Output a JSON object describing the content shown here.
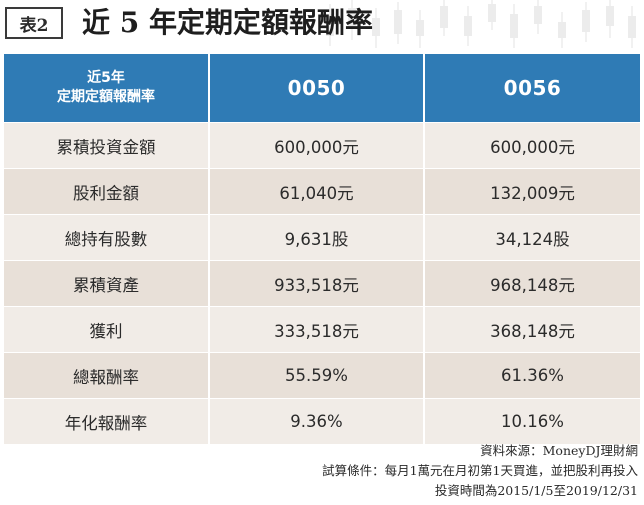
{
  "header": {
    "badge": "表2",
    "title": "近 5 年定期定額報酬率"
  },
  "table": {
    "corner_line1": "近5年",
    "corner_line2": "定期定額報酬率",
    "columns": [
      "0050",
      "0056"
    ],
    "rows": [
      {
        "label": "累積投資金額",
        "values": [
          "600,000元",
          "600,000元"
        ]
      },
      {
        "label": "股利金額",
        "values": [
          "61,040元",
          "132,009元"
        ]
      },
      {
        "label": "總持有股數",
        "values": [
          "9,631股",
          "34,124股"
        ]
      },
      {
        "label": "累積資產",
        "values": [
          "933,518元",
          "968,148元"
        ]
      },
      {
        "label": "獲利",
        "values": [
          "333,518元",
          "368,148元"
        ]
      },
      {
        "label": "總報酬率",
        "values": [
          "55.59%",
          "61.36%"
        ]
      },
      {
        "label": "年化報酬率",
        "values": [
          "9.36%",
          "10.16%"
        ]
      }
    ]
  },
  "notes": {
    "source": "資料來源：MoneyDJ理財網",
    "condition": "試算條件：每月1萬元在月初第1天買進，並把股利再投入",
    "period": "投資時間為2015/1/5至2019/12/31"
  },
  "colors": {
    "header_blue": "#2f7bb5",
    "row_light": "#f1ece7",
    "row_dark": "#e8e0d8"
  }
}
